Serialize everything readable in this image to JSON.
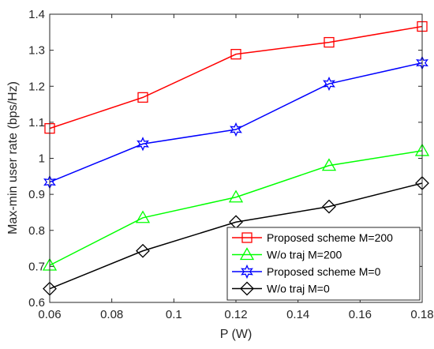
{
  "chart_data": {
    "type": "line",
    "xlabel": "P (W)",
    "ylabel": "Max-min user rate (bps/Hz)",
    "xlim": [
      0.06,
      0.18
    ],
    "ylim": [
      0.6,
      1.4
    ],
    "x": [
      0.06,
      0.09,
      0.12,
      0.15,
      0.18
    ],
    "xticks": [
      "0.06",
      "0.08",
      "0.1",
      "0.12",
      "0.14",
      "0.16",
      "0.18"
    ],
    "yticks": [
      "0.6",
      "0.7",
      "0.8",
      "0.9",
      "1",
      "1.1",
      "1.2",
      "1.3",
      "1.4"
    ],
    "grid": false,
    "legend_position": "bottom-right",
    "series": [
      {
        "name": "Proposed scheme M=200",
        "color": "#ff0000",
        "marker": "square",
        "values": [
          1.083,
          1.169,
          1.289,
          1.322,
          1.366
        ]
      },
      {
        "name": "W/o traj M=200",
        "color": "#00ff00",
        "marker": "triangle",
        "values": [
          0.703,
          0.835,
          0.892,
          0.98,
          1.021
        ]
      },
      {
        "name": "Proposed scheme M=0",
        "color": "#0000ff",
        "marker": "hexagram",
        "values": [
          0.934,
          1.04,
          1.08,
          1.207,
          1.265
        ]
      },
      {
        "name": "W/o traj  M=0",
        "color": "#000000",
        "marker": "diamond",
        "values": [
          0.638,
          0.743,
          0.823,
          0.866,
          0.931
        ]
      }
    ]
  }
}
